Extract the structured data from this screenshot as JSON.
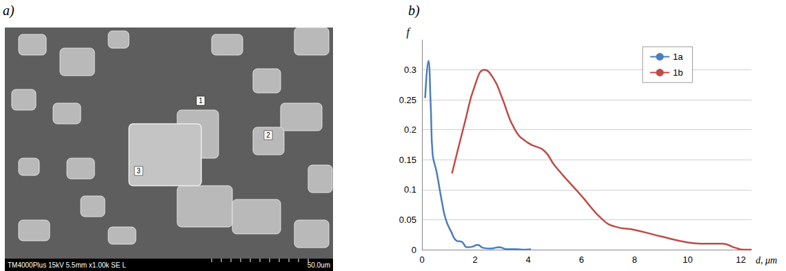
{
  "image": {
    "label": "a)",
    "info_bar": "TM4000Plus 15kV 5.5mm x1.00k SE L",
    "scale_bar": "50.0um",
    "markers": [
      "1",
      "2",
      "3"
    ]
  },
  "chart_data": {
    "label": "b)",
    "type": "line",
    "xlabel": "d, μm",
    "ylabel": "f",
    "xlim": [
      0,
      12.4
    ],
    "xticks": [
      0,
      2,
      4,
      6,
      8,
      10,
      12
    ],
    "ylim": [
      0,
      0.35
    ],
    "yticks": [
      0,
      0.05,
      0.1,
      0.15,
      0.2,
      0.25,
      0.3
    ],
    "grid": true,
    "legend": "upper right",
    "line_style": "smooth",
    "marker": "none",
    "series": [
      {
        "name": "1a",
        "color": "#4a7ebb",
        "x": [
          0.12,
          0.24,
          0.33,
          0.4,
          0.55,
          0.75,
          0.9,
          1.1,
          1.3,
          1.5,
          1.7,
          1.9,
          2.1,
          2.3,
          2.6,
          2.9,
          3.2,
          3.5,
          3.8,
          4.1
        ],
        "values": [
          0.253,
          0.315,
          0.24,
          0.16,
          0.13,
          0.08,
          0.05,
          0.03,
          0.015,
          0.013,
          0.004,
          0.005,
          0.008,
          0.003,
          0.002,
          0.004,
          0.001,
          0.001,
          0.0,
          0.001
        ]
      },
      {
        "name": "1b",
        "color": "#be4b48",
        "x": [
          1.13,
          1.6,
          2.0,
          2.35,
          2.7,
          3.0,
          3.5,
          4.0,
          4.6,
          5.0,
          6.0,
          6.8,
          7.3,
          8.0,
          9.0,
          10.0,
          10.5,
          11.3,
          11.8,
          12.1,
          12.4
        ],
        "values": [
          0.127,
          0.21,
          0.275,
          0.3,
          0.285,
          0.255,
          0.2,
          0.178,
          0.165,
          0.14,
          0.09,
          0.05,
          0.038,
          0.033,
          0.022,
          0.012,
          0.01,
          0.01,
          0.003,
          0.0,
          0.0
        ]
      }
    ]
  }
}
